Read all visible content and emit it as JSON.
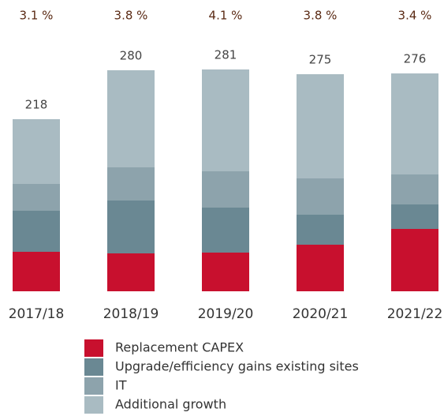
{
  "chart_data": {
    "type": "stacked_bar",
    "categories": [
      "2017/18",
      "2018/19",
      "2019/20",
      "2020/21",
      "2021/22"
    ],
    "series": [
      {
        "name": "Replacement CAPEX",
        "color": "#c8102e",
        "values": [
          50,
          48,
          49,
          59,
          79
        ]
      },
      {
        "name": "Upgrade/efficiency gains existing sites",
        "color": "#6a8893",
        "values": [
          52,
          67,
          57,
          38,
          31
        ]
      },
      {
        "name": "IT",
        "color": "#8da3ac",
        "values": [
          34,
          42,
          46,
          46,
          38
        ]
      },
      {
        "name": "Additional growth",
        "color": "#a9bbc2",
        "values": [
          82,
          123,
          129,
          132,
          128
        ]
      }
    ],
    "totals": [
      218,
      280,
      281,
      275,
      276
    ],
    "shares": {
      "values": [
        3.1,
        3.8,
        4.1,
        3.8,
        3.4
      ],
      "value_labels": [
        "3.1 %",
        "3.8 %",
        "4.1 %",
        "3.8 %",
        "3.4 %"
      ]
    }
  }
}
